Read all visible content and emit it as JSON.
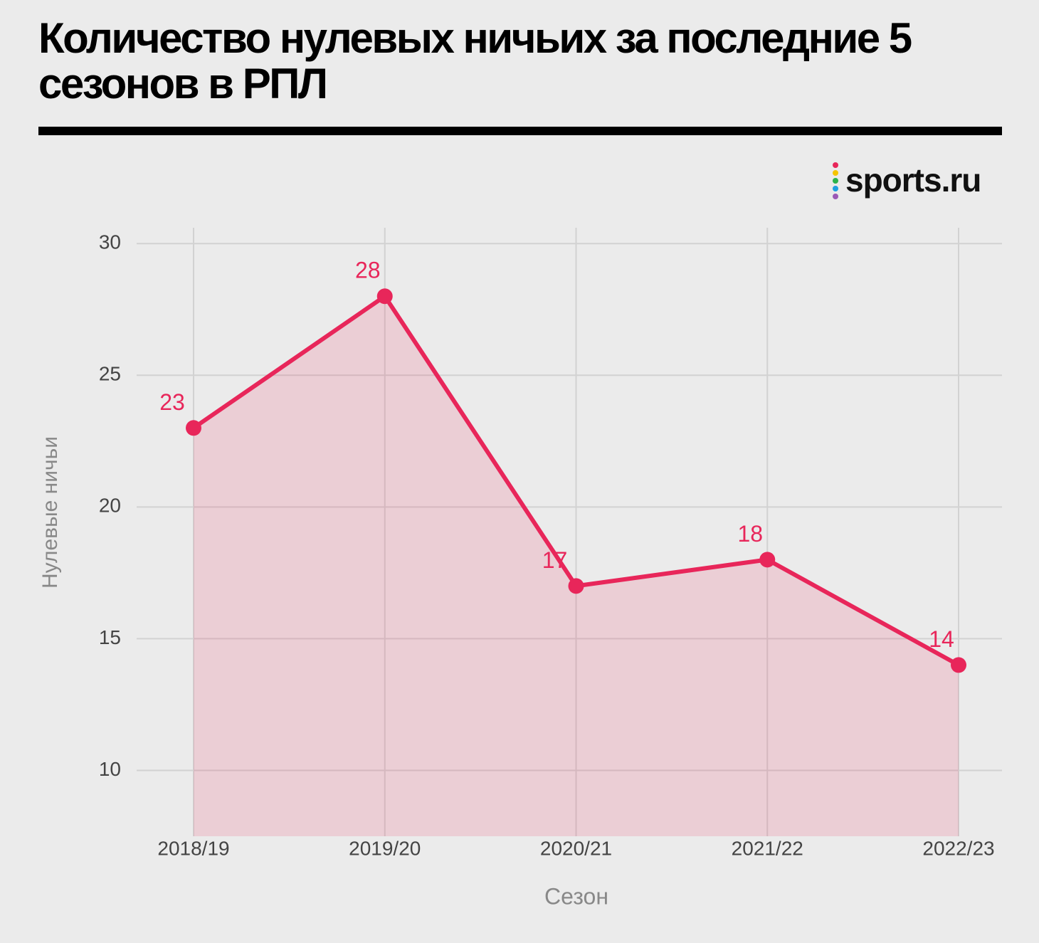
{
  "title": "Количество нулевых ничьих за последние 5 сезонов в РПЛ",
  "logo": "sports.ru",
  "chart_data": {
    "type": "line",
    "area": true,
    "categories": [
      "2018/19",
      "2019/20",
      "2020/21",
      "2021/22",
      "2022/23"
    ],
    "series": [
      {
        "name": "Нулевые ничьи",
        "color": "#e8265a",
        "values": [
          23,
          28,
          17,
          18,
          14
        ]
      }
    ],
    "x_label": "Сезон",
    "y_label": "Нулевые ничьи",
    "ylim": [
      7.5,
      30.6
    ],
    "yticks": [
      10,
      15,
      20,
      25,
      30
    ],
    "grid": true
  }
}
